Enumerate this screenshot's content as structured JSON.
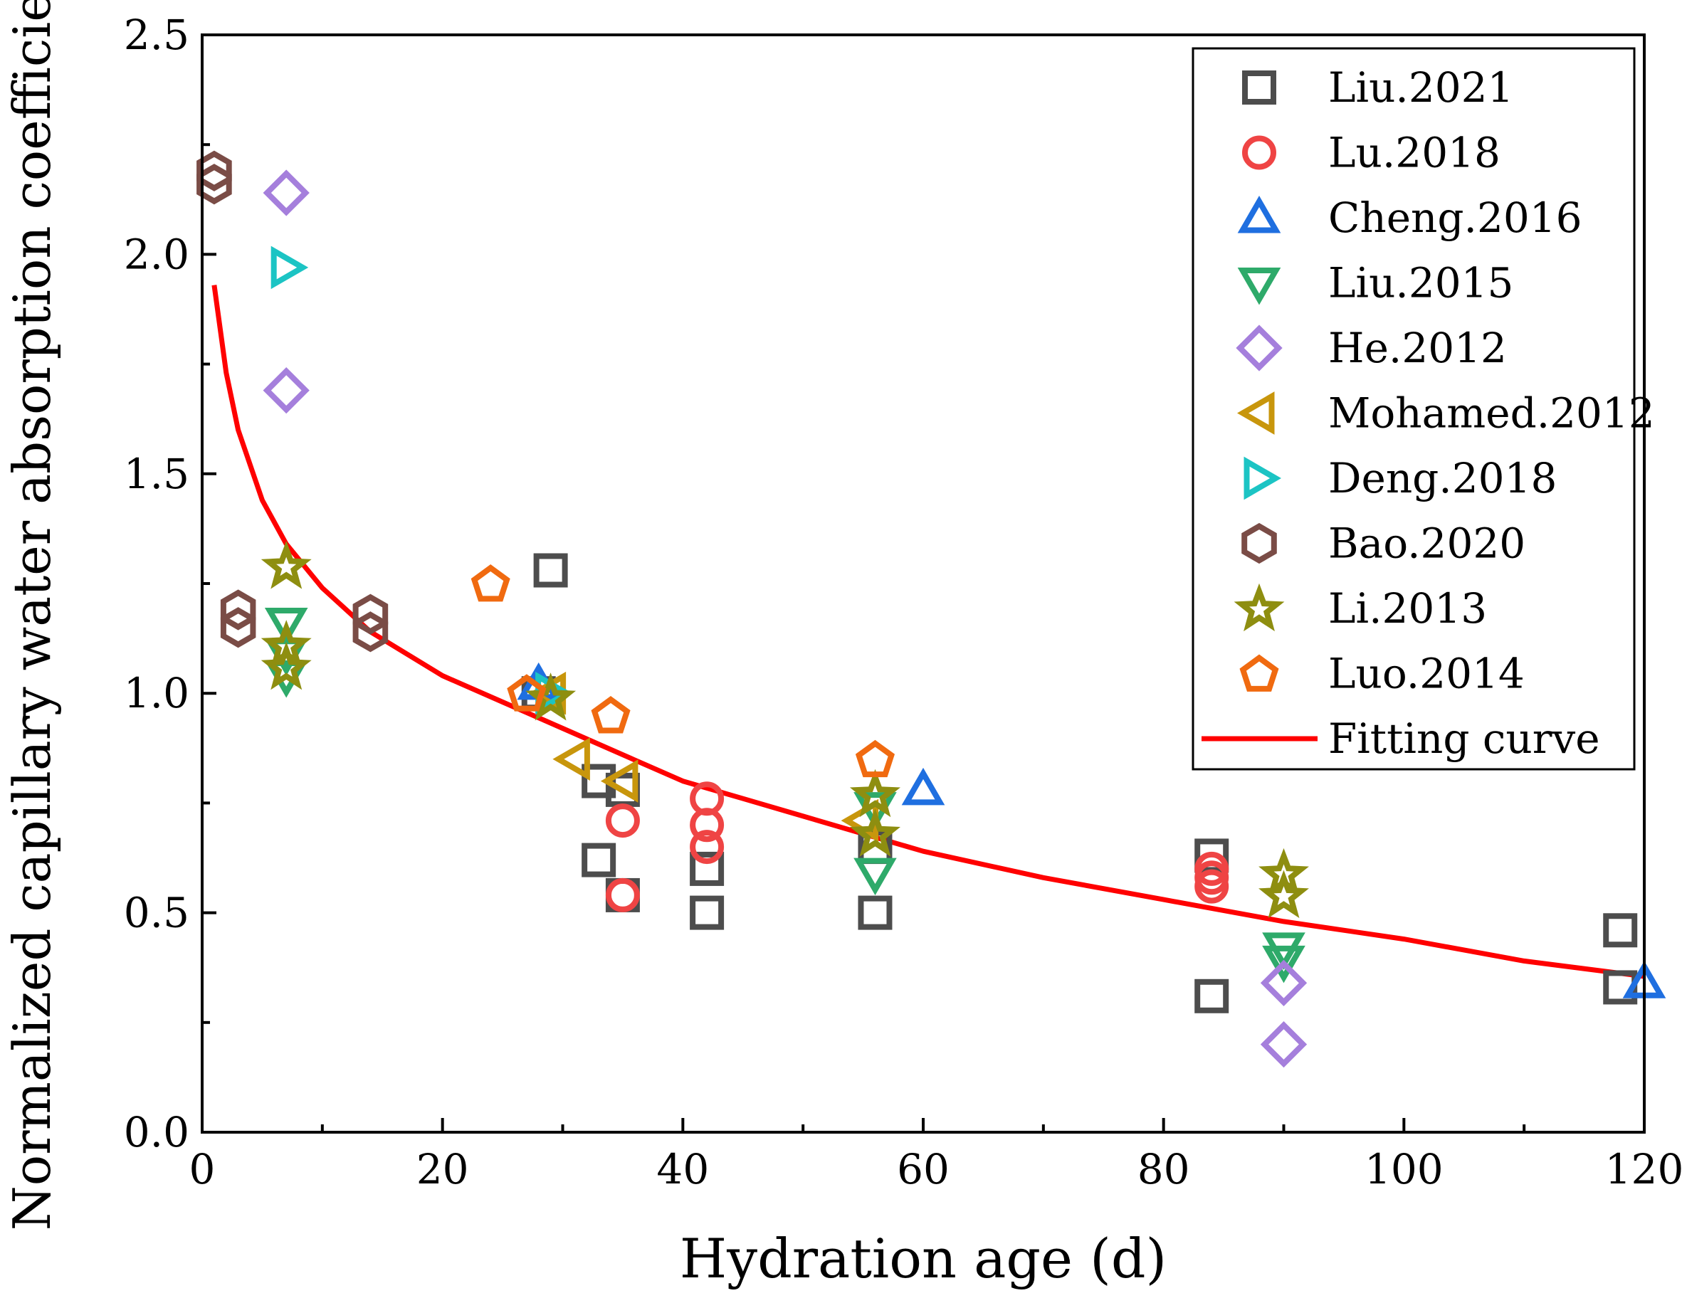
{
  "chart_data": {
    "type": "scatter",
    "xlabel": "Hydration age (d)",
    "ylabel": "Normalized capillary water absorption coefficient",
    "xlim": [
      0,
      120
    ],
    "ylim": [
      0,
      2.5
    ],
    "xticks": [
      0,
      20,
      40,
      60,
      80,
      100,
      120
    ],
    "yticks": [
      0.0,
      0.5,
      1.0,
      1.5,
      2.0,
      2.5
    ],
    "xtick_labels": [
      "0",
      "20",
      "40",
      "60",
      "80",
      "100",
      "120"
    ],
    "ytick_labels": [
      "0.0",
      "0.5",
      "1.0",
      "1.5",
      "2.0",
      "2.5"
    ],
    "legend_position": "top-right",
    "series": [
      {
        "name": "Liu.2021",
        "marker": "square",
        "color": "#4d4d4d",
        "points": [
          [
            28,
            1.0
          ],
          [
            29,
            1.28
          ],
          [
            33,
            0.8
          ],
          [
            33,
            0.62
          ],
          [
            35,
            0.78
          ],
          [
            35,
            0.54
          ],
          [
            42,
            0.6
          ],
          [
            42,
            0.5
          ],
          [
            56,
            0.65
          ],
          [
            56,
            0.5
          ],
          [
            84,
            0.63
          ],
          [
            84,
            0.31
          ],
          [
            118,
            0.46
          ],
          [
            118,
            0.33
          ]
        ]
      },
      {
        "name": "Lu.2018",
        "marker": "circle",
        "color": "#ef4444",
        "points": [
          [
            35,
            0.71
          ],
          [
            35,
            0.54
          ],
          [
            42,
            0.76
          ],
          [
            42,
            0.7
          ],
          [
            42,
            0.65
          ],
          [
            84,
            0.6
          ],
          [
            84,
            0.58
          ],
          [
            84,
            0.56
          ]
        ]
      },
      {
        "name": "Cheng.2016",
        "marker": "triangle-up",
        "color": "#1f6fe0",
        "points": [
          [
            28,
            1.02
          ],
          [
            60,
            0.78
          ],
          [
            120,
            0.34
          ]
        ]
      },
      {
        "name": "Liu.2015",
        "marker": "triangle-down",
        "color": "#2eaa6a",
        "points": [
          [
            7,
            1.16
          ],
          [
            7,
            1.09
          ],
          [
            7,
            1.04
          ],
          [
            56,
            0.74
          ],
          [
            56,
            0.59
          ],
          [
            90,
            0.42
          ],
          [
            90,
            0.39
          ]
        ]
      },
      {
        "name": "He.2012",
        "marker": "diamond",
        "color": "#a57fdc",
        "points": [
          [
            7,
            2.14
          ],
          [
            7,
            1.69
          ],
          [
            90,
            0.34
          ],
          [
            90,
            0.2
          ]
        ]
      },
      {
        "name": "Mohamed.2012",
        "marker": "triangle-left",
        "color": "#c8960c",
        "points": [
          [
            29,
            1.0
          ],
          [
            31,
            0.85
          ],
          [
            35,
            0.8
          ],
          [
            55,
            0.71
          ]
        ]
      },
      {
        "name": "Deng.2018",
        "marker": "triangle-right",
        "color": "#1cc4c4",
        "points": [
          [
            7,
            1.97
          ],
          [
            29,
            1.0
          ]
        ]
      },
      {
        "name": "Bao.2020",
        "marker": "hexagon",
        "color": "#7a4c46",
        "points": [
          [
            1,
            2.19
          ],
          [
            1,
            2.16
          ],
          [
            3,
            1.19
          ],
          [
            3,
            1.15
          ],
          [
            14,
            1.18
          ],
          [
            14,
            1.14
          ]
        ]
      },
      {
        "name": "Li.2013",
        "marker": "star",
        "color": "#8e8e10",
        "points": [
          [
            7,
            1.29
          ],
          [
            7,
            1.11
          ],
          [
            7,
            1.06
          ],
          [
            29,
            0.99
          ],
          [
            56,
            0.77
          ],
          [
            56,
            0.68
          ],
          [
            90,
            0.59
          ],
          [
            90,
            0.54
          ]
        ]
      },
      {
        "name": "Luo.2014",
        "marker": "pentagon",
        "color": "#f06a10",
        "points": [
          [
            24,
            1.25
          ],
          [
            27,
            1.0
          ],
          [
            34,
            0.95
          ],
          [
            56,
            0.85
          ]
        ]
      }
    ],
    "fit": {
      "name": "Fitting curve",
      "color": "#ff0000",
      "points": [
        [
          1,
          1.93
        ],
        [
          2,
          1.73
        ],
        [
          3,
          1.6
        ],
        [
          5,
          1.44
        ],
        [
          7,
          1.34
        ],
        [
          10,
          1.24
        ],
        [
          14,
          1.14
        ],
        [
          20,
          1.04
        ],
        [
          25,
          0.98
        ],
        [
          30,
          0.92
        ],
        [
          35,
          0.86
        ],
        [
          40,
          0.8
        ],
        [
          45,
          0.76
        ],
        [
          50,
          0.72
        ],
        [
          55,
          0.68
        ],
        [
          60,
          0.64
        ],
        [
          70,
          0.58
        ],
        [
          80,
          0.53
        ],
        [
          90,
          0.48
        ],
        [
          100,
          0.44
        ],
        [
          110,
          0.39
        ],
        [
          120,
          0.355
        ]
      ]
    }
  }
}
